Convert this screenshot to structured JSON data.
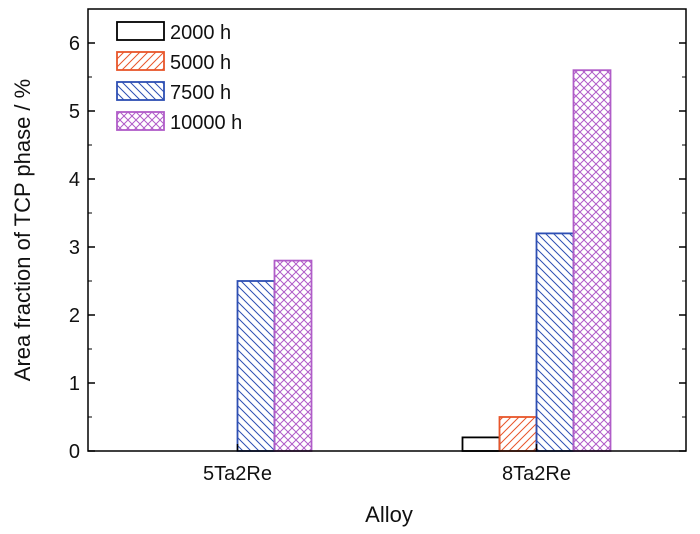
{
  "chart_data": {
    "type": "bar",
    "categories": [
      "5Ta2Re",
      "8Ta2Re"
    ],
    "series": [
      {
        "name": "2000 h",
        "values": [
          0.0,
          0.2
        ],
        "color": "#000000",
        "pattern": "none"
      },
      {
        "name": "5000 h",
        "values": [
          0.0,
          0.5
        ],
        "color": "#e8552a",
        "pattern": "diagonal-forward"
      },
      {
        "name": "7500 h",
        "values": [
          2.5,
          3.2
        ],
        "color": "#2e4fb3",
        "pattern": "diagonal-back"
      },
      {
        "name": "10000 h",
        "values": [
          2.8,
          5.6
        ],
        "color": "#b05cc8",
        "pattern": "crosshatch"
      }
    ],
    "xlabel": "Alloy",
    "ylabel": "Area fraction of TCP phase / %",
    "ylim": [
      0,
      6.5
    ],
    "yticks": [
      0,
      1,
      2,
      3,
      4,
      5,
      6
    ],
    "grid": false,
    "legend_position": "top-left"
  }
}
